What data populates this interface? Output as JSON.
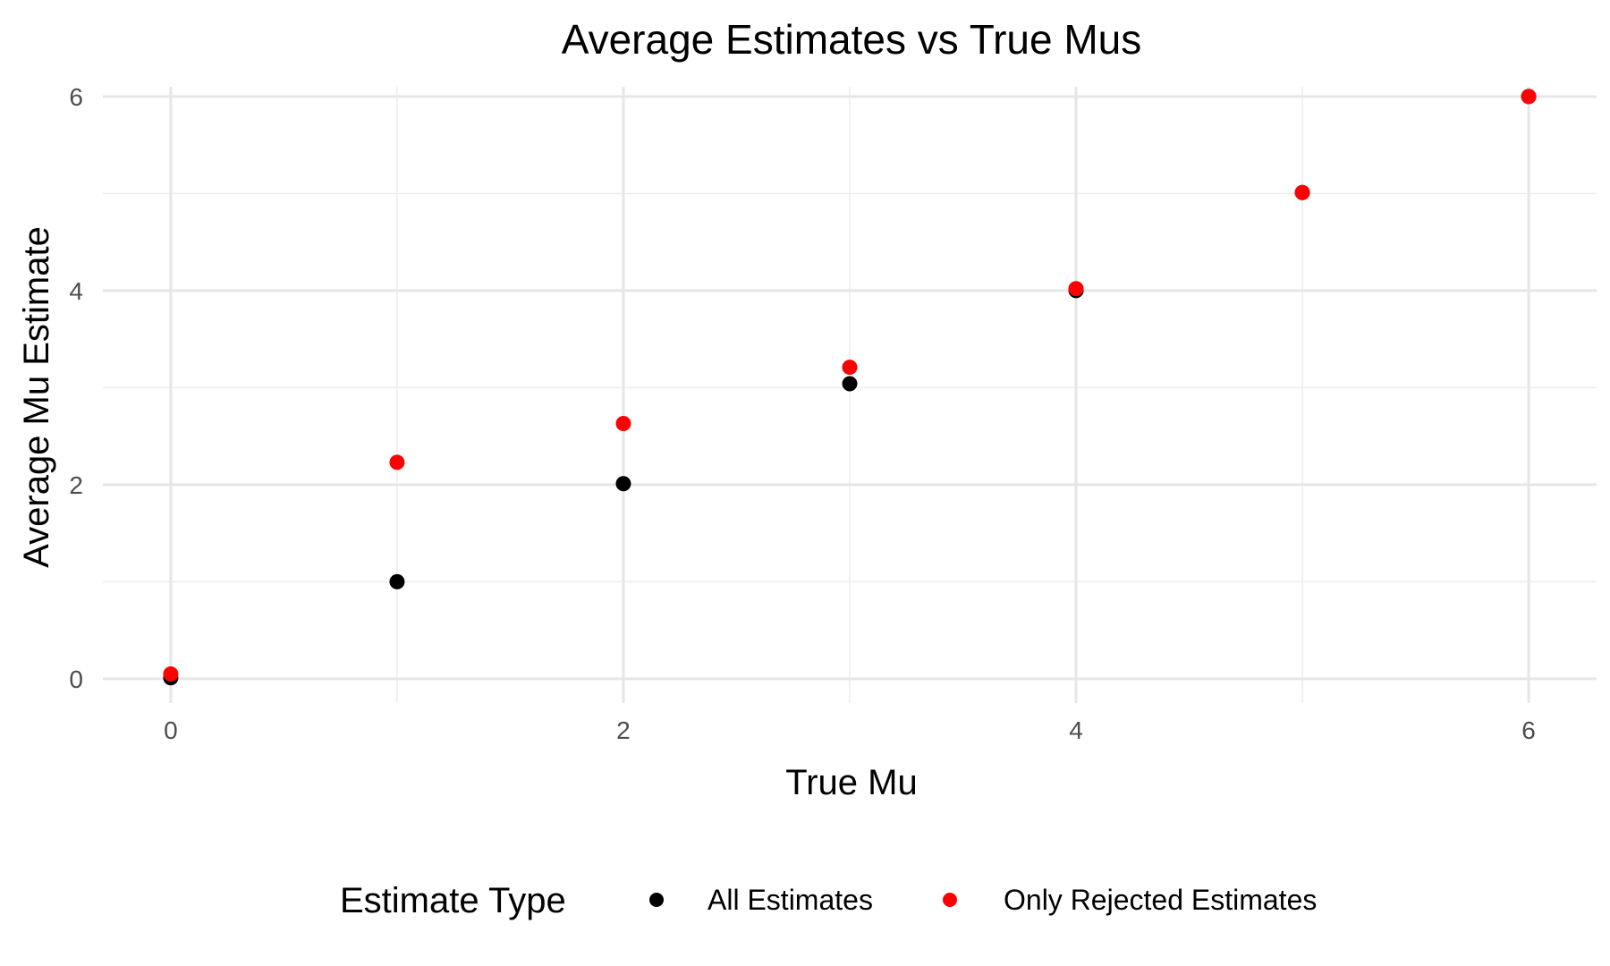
{
  "chart_data": {
    "type": "scatter",
    "title": "Average Estimates vs True Mus",
    "xlabel": "True Mu",
    "ylabel": "Average Mu Estimate",
    "xlim": [
      -0.3,
      6.3
    ],
    "ylim": [
      -0.25,
      6.1
    ],
    "x_ticks": [
      0,
      2,
      4,
      6
    ],
    "y_ticks": [
      0,
      2,
      4,
      6
    ],
    "x_minor": [
      1,
      3,
      5
    ],
    "y_minor": [
      1,
      3,
      5
    ],
    "grid": true,
    "legend": {
      "title": "Estimate Type",
      "position": "bottom"
    },
    "series": [
      {
        "name": "All Estimates",
        "color": "#000000",
        "x": [
          0,
          1,
          2,
          3,
          4,
          5,
          6
        ],
        "y": [
          0.01,
          1.0,
          2.01,
          3.04,
          4.0,
          5.01,
          6.0
        ]
      },
      {
        "name": "Only Rejected Estimates",
        "color": "#ff0000",
        "x": [
          0,
          1,
          2,
          3,
          4,
          5,
          6
        ],
        "y": [
          0.05,
          2.23,
          2.63,
          3.21,
          4.02,
          5.01,
          6.0
        ]
      }
    ]
  }
}
